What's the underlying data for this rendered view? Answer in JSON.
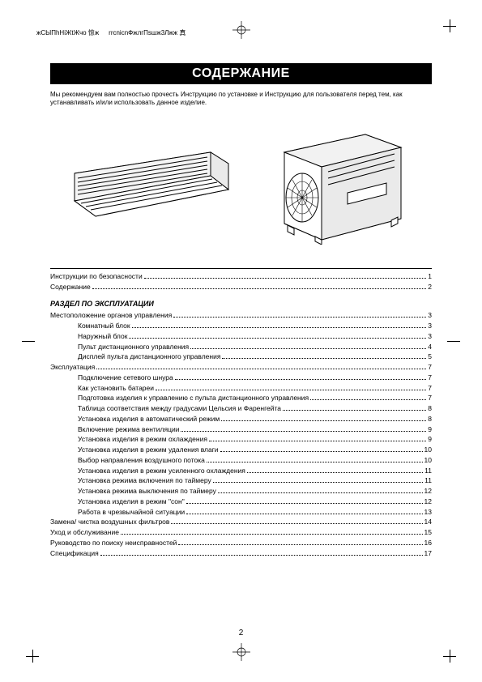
{
  "printers": {
    "code1": "жСЫПhНiЖtЖчо  惊ж",
    "code2": "rrcnicnФжлгПsшж3Лжж  真"
  },
  "title": "СОДЕРЖАНИЕ",
  "intro": "Мы рекомендуем вам полностью прочесть Инструкцию по установке и Инструкцию для пользователя перед тем, как устанавливать и/или использовать данное изделие.",
  "toc_top": [
    {
      "label": "Инструкции по безопасности",
      "page": "1",
      "indent": 0
    },
    {
      "label": "Содержание",
      "page": "2",
      "indent": 0
    }
  ],
  "section_title": "РАЗДЕЛ ПО ЭКСПЛУАТАЦИИ",
  "toc_main": [
    {
      "label": "Местоположение органов управления",
      "page": "3",
      "indent": 0
    },
    {
      "label": "Комнатный блок",
      "page": "3",
      "indent": 1
    },
    {
      "label": "Наружный блок",
      "page": "3",
      "indent": 1
    },
    {
      "label": "Пульт дистанционного управления",
      "page": "4",
      "indent": 1
    },
    {
      "label": "Дисплей пульта дистанционного управления",
      "page": "5",
      "indent": 1
    },
    {
      "label": "Эксплуатация",
      "page": "7",
      "indent": 0
    },
    {
      "label": "Подключение сетевого шнура",
      "page": "7",
      "indent": 1
    },
    {
      "label": "Как установить батареи",
      "page": "7",
      "indent": 1
    },
    {
      "label": "Подготовка изделия к управлению с пульта дистанционного управления",
      "page": "7",
      "indent": 1
    },
    {
      "label": "Таблица соответствия между градусами Цельсия и Фаренгейта",
      "page": "8",
      "indent": 1
    },
    {
      "label": "Установка изделия в автоматический режим",
      "page": "8",
      "indent": 1
    },
    {
      "label": "Включение режима вентиляции",
      "page": "9",
      "indent": 1
    },
    {
      "label": "Установка изделия в режим охлаждения",
      "page": "9",
      "indent": 1
    },
    {
      "label": "Установка изделия в режим удаления влаги",
      "page": "10",
      "indent": 1
    },
    {
      "label": "Выбор направления воздушного потока",
      "page": "10",
      "indent": 1
    },
    {
      "label": "Установка изделия в режим усиленного охлаждения",
      "page": "11",
      "indent": 1
    },
    {
      "label": "Установка режима включения по таймеру",
      "page": "11",
      "indent": 1
    },
    {
      "label": "Установка режима выключения по таймеру",
      "page": "12",
      "indent": 1
    },
    {
      "label": "Установка изделия в режим \"сон\"",
      "page": "12",
      "indent": 1
    },
    {
      "label": "Работа в чрезвычайной ситуации",
      "page": "13",
      "indent": 1
    },
    {
      "label": "Замена/ чистка воздушных фильтров",
      "page": "14",
      "indent": 0
    },
    {
      "label": "Уход и обслуживание",
      "page": "15",
      "indent": 0
    },
    {
      "label": "Руководство по поиску неисправностей",
      "page": "16",
      "indent": 0
    },
    {
      "label": "Спецификация",
      "page": "17",
      "indent": 0
    }
  ],
  "page_number": "2"
}
